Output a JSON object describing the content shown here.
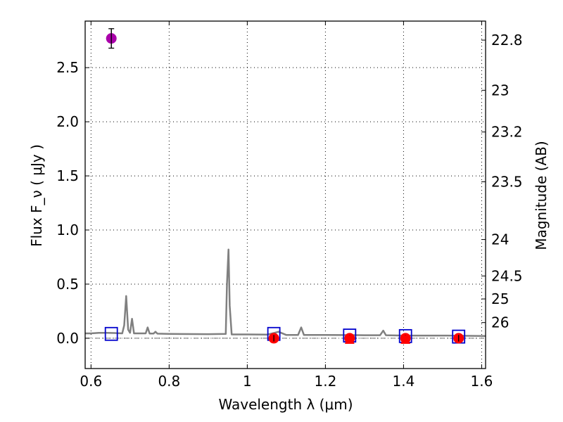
{
  "chart_data": {
    "type": "scatter",
    "xlabel": "Wavelength  λ (μm)",
    "ylabel": "Flux  F_ν  ( μJy )",
    "y2label": "Magnitude (AB)",
    "xlim": [
      0.585,
      1.61
    ],
    "ylim": [
      -0.28,
      2.93
    ],
    "x_ticks": [
      0.6,
      0.8,
      1.0,
      1.2,
      1.4,
      1.6
    ],
    "x_tick_labels": [
      "0.6",
      "0.8",
      "1",
      "1.2",
      "1.4",
      "1.6"
    ],
    "y_ticks": [
      0.0,
      0.5,
      1.0,
      1.5,
      2.0,
      2.5
    ],
    "y_tick_labels": [
      "0.0",
      "0.5",
      "1.0",
      "1.5",
      "2.0",
      "2.5"
    ],
    "y2_ticks": [
      22.8,
      23.0,
      23.2,
      23.5,
      24.0,
      24.5,
      25.0,
      26.0
    ],
    "y2_tick_labels": [
      "22.8",
      "23",
      "23.2",
      "23.5",
      "24",
      "24.5",
      "25",
      "26"
    ],
    "grid": true,
    "colors": {
      "model": "#808080",
      "magenta_point": "#aa00aa",
      "red_point": "#ff0000",
      "blue_square": "#0000cc",
      "dashdot": "#777777"
    },
    "model_spectrum": {
      "x": [
        0.585,
        0.6,
        0.62,
        0.64,
        0.66,
        0.68,
        0.685,
        0.69,
        0.695,
        0.7,
        0.705,
        0.71,
        0.74,
        0.745,
        0.75,
        0.76,
        0.765,
        0.77,
        0.8,
        0.9,
        0.945,
        0.948,
        0.952,
        0.955,
        0.96,
        1.0,
        1.05,
        1.07,
        1.08,
        1.1,
        1.13,
        1.138,
        1.145,
        1.2,
        1.3,
        1.34,
        1.348,
        1.355,
        1.4,
        1.5,
        1.61
      ],
      "y": [
        0.045,
        0.045,
        0.05,
        0.05,
        0.048,
        0.045,
        0.12,
        0.39,
        0.08,
        0.05,
        0.18,
        0.045,
        0.045,
        0.1,
        0.043,
        0.043,
        0.06,
        0.042,
        0.04,
        0.038,
        0.04,
        0.5,
        0.82,
        0.3,
        0.035,
        0.035,
        0.033,
        0.05,
        0.06,
        0.03,
        0.03,
        0.1,
        0.03,
        0.03,
        0.028,
        0.028,
        0.07,
        0.028,
        0.025,
        0.025,
        0.02
      ]
    },
    "photometry_points": [
      {
        "x": 0.652,
        "y": 2.77,
        "yerr": 0.09,
        "color": "magenta"
      },
      {
        "x": 1.068,
        "y": 0.0,
        "yerr": 0.03,
        "color": "red"
      },
      {
        "x": 1.262,
        "y": 0.0,
        "yerr": 0.03,
        "color": "red"
      },
      {
        "x": 1.405,
        "y": 0.0,
        "yerr": 0.03,
        "color": "red"
      },
      {
        "x": 1.541,
        "y": 0.0,
        "yerr": 0.03,
        "color": "red"
      }
    ],
    "model_band_fluxes": [
      {
        "x": 0.652,
        "y": 0.04
      },
      {
        "x": 1.068,
        "y": 0.04
      },
      {
        "x": 1.262,
        "y": 0.025
      },
      {
        "x": 1.405,
        "y": 0.02
      },
      {
        "x": 1.541,
        "y": 0.015
      }
    ],
    "red_triangles": [
      {
        "x": 1.262,
        "y": 0.0
      },
      {
        "x": 1.405,
        "y": 0.0
      }
    ],
    "zero_line_y": 0.0
  }
}
